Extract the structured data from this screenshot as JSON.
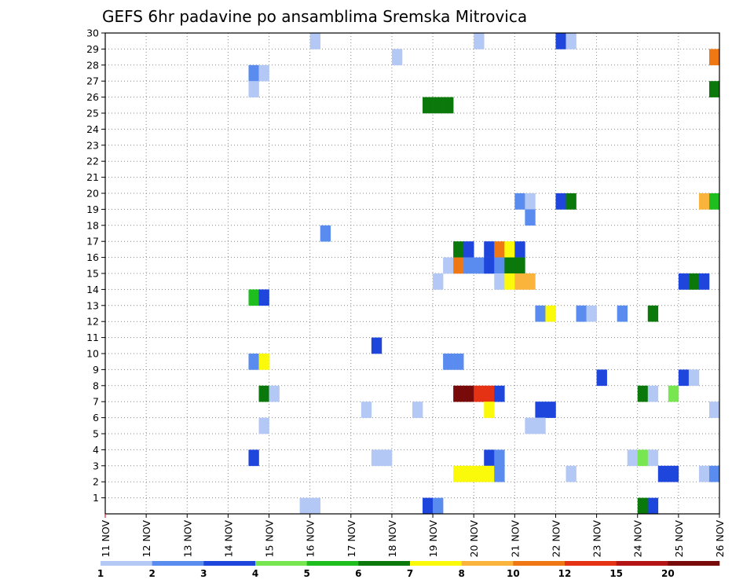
{
  "chart_data": {
    "type": "heatmap",
    "title": "GEFS 6hr padavine po ansamblima Sremska Mitrovica",
    "x_tick_labels": [
      "11 NOV",
      "12 NOV",
      "13 NOV",
      "14 NOV",
      "15 NOV",
      "16 NOV",
      "17 NOV",
      "18 NOV",
      "19 NOV",
      "20 NOV",
      "21 NOV",
      "22 NOV",
      "23 NOV",
      "24 NOV",
      "25 NOV",
      "26 NOV"
    ],
    "y_tick_labels": [
      "1",
      "2",
      "3",
      "4",
      "5",
      "6",
      "7",
      "8",
      "9",
      "10",
      "11",
      "12",
      "13",
      "14",
      "15",
      "16",
      "17",
      "18",
      "19",
      "20",
      "21",
      "22",
      "23",
      "24",
      "25",
      "26",
      "27",
      "28",
      "29",
      "30"
    ],
    "x_unit": "6-hour step (4 steps per day, step 0 = 11 NOV 00Z)",
    "x_range_steps": [
      0,
      60
    ],
    "y_range_members": [
      0,
      30
    ],
    "grid": "dotted",
    "legend_position": "bottom",
    "legend_labels": [
      "1",
      "2",
      "3",
      "4",
      "5",
      "6",
      "7",
      "8",
      "10",
      "12",
      "15",
      "20"
    ],
    "levels": [
      {
        "label": "1-2",
        "color": "#b4c8f5"
      },
      {
        "label": "2-3",
        "color": "#5a8cf0"
      },
      {
        "label": "3-4",
        "color": "#1e46dc"
      },
      {
        "label": "4-5",
        "color": "#78e650"
      },
      {
        "label": "5-6",
        "color": "#1ebe1e"
      },
      {
        "label": "6-7",
        "color": "#0a780a"
      },
      {
        "label": "7-8",
        "color": "#fafa0a"
      },
      {
        "label": "8-10",
        "color": "#fab43c"
      },
      {
        "label": "10-12",
        "color": "#f07814"
      },
      {
        "label": "12-15",
        "color": "#e63214"
      },
      {
        "label": "15-20",
        "color": "#b41414"
      },
      {
        "label": ">20",
        "color": "#780a0a"
      }
    ],
    "cells": [
      [
        20,
        30,
        0
      ],
      [
        36,
        30,
        0
      ],
      [
        44,
        30,
        2
      ],
      [
        45,
        30,
        0
      ],
      [
        28,
        29,
        0
      ],
      [
        59,
        29,
        8
      ],
      [
        14,
        28,
        1
      ],
      [
        15,
        28,
        0
      ],
      [
        59,
        27,
        5
      ],
      [
        14,
        27,
        0
      ],
      [
        31,
        26,
        5
      ],
      [
        32,
        26,
        5
      ],
      [
        33,
        26,
        5
      ],
      [
        40,
        20,
        1
      ],
      [
        41,
        20,
        0
      ],
      [
        44,
        20,
        2
      ],
      [
        45,
        20,
        5
      ],
      [
        58,
        20,
        7
      ],
      [
        59,
        20,
        4
      ],
      [
        41,
        19,
        1
      ],
      [
        21,
        18,
        1
      ],
      [
        34,
        17,
        5
      ],
      [
        35,
        17,
        2
      ],
      [
        37,
        17,
        2
      ],
      [
        38,
        17,
        8
      ],
      [
        39,
        17,
        6
      ],
      [
        40,
        17,
        2
      ],
      [
        33,
        16,
        0
      ],
      [
        34,
        16,
        8
      ],
      [
        35,
        16,
        1
      ],
      [
        36,
        16,
        1
      ],
      [
        37,
        16,
        2
      ],
      [
        38,
        16,
        1
      ],
      [
        39,
        16,
        5
      ],
      [
        40,
        16,
        5
      ],
      [
        32,
        15,
        0
      ],
      [
        38,
        15,
        0
      ],
      [
        39,
        15,
        6
      ],
      [
        40,
        15,
        7
      ],
      [
        41,
        15,
        7
      ],
      [
        56,
        15,
        2
      ],
      [
        57,
        15,
        5
      ],
      [
        58,
        15,
        2
      ],
      [
        14,
        14,
        4
      ],
      [
        15,
        14,
        2
      ],
      [
        42,
        13,
        1
      ],
      [
        43,
        13,
        6
      ],
      [
        46,
        13,
        1
      ],
      [
        47,
        13,
        0
      ],
      [
        50,
        13,
        1
      ],
      [
        53,
        13,
        5
      ],
      [
        26,
        11,
        2
      ],
      [
        14,
        10,
        1
      ],
      [
        15,
        10,
        6
      ],
      [
        33,
        10,
        1
      ],
      [
        34,
        10,
        1
      ],
      [
        48,
        9,
        2
      ],
      [
        56,
        9,
        2
      ],
      [
        57,
        9,
        0
      ],
      [
        15,
        8,
        5
      ],
      [
        16,
        8,
        0
      ],
      [
        34,
        8,
        11
      ],
      [
        35,
        8,
        11
      ],
      [
        36,
        8,
        9
      ],
      [
        37,
        8,
        9
      ],
      [
        38,
        8,
        2
      ],
      [
        52,
        8,
        5
      ],
      [
        53,
        8,
        0
      ],
      [
        55,
        8,
        3
      ],
      [
        25,
        7,
        0
      ],
      [
        30,
        7,
        0
      ],
      [
        37,
        7,
        6
      ],
      [
        42,
        7,
        2
      ],
      [
        43,
        7,
        2
      ],
      [
        59,
        7,
        0
      ],
      [
        15,
        6,
        0
      ],
      [
        41,
        6,
        0
      ],
      [
        42,
        6,
        0
      ],
      [
        14,
        4,
        2
      ],
      [
        26,
        4,
        0
      ],
      [
        27,
        4,
        0
      ],
      [
        37,
        4,
        2
      ],
      [
        38,
        4,
        1
      ],
      [
        51,
        4,
        0
      ],
      [
        52,
        4,
        3
      ],
      [
        53,
        4,
        0
      ],
      [
        34,
        3,
        6
      ],
      [
        35,
        3,
        6
      ],
      [
        36,
        3,
        6
      ],
      [
        37,
        3,
        6
      ],
      [
        38,
        3,
        1
      ],
      [
        45,
        3,
        0
      ],
      [
        54,
        3,
        2
      ],
      [
        55,
        3,
        2
      ],
      [
        58,
        3,
        0
      ],
      [
        59,
        3,
        1
      ],
      [
        19,
        1,
        0
      ],
      [
        20,
        1,
        0
      ],
      [
        31,
        1,
        2
      ],
      [
        32,
        1,
        1
      ],
      [
        52,
        1,
        5
      ],
      [
        53,
        1,
        2
      ]
    ]
  }
}
